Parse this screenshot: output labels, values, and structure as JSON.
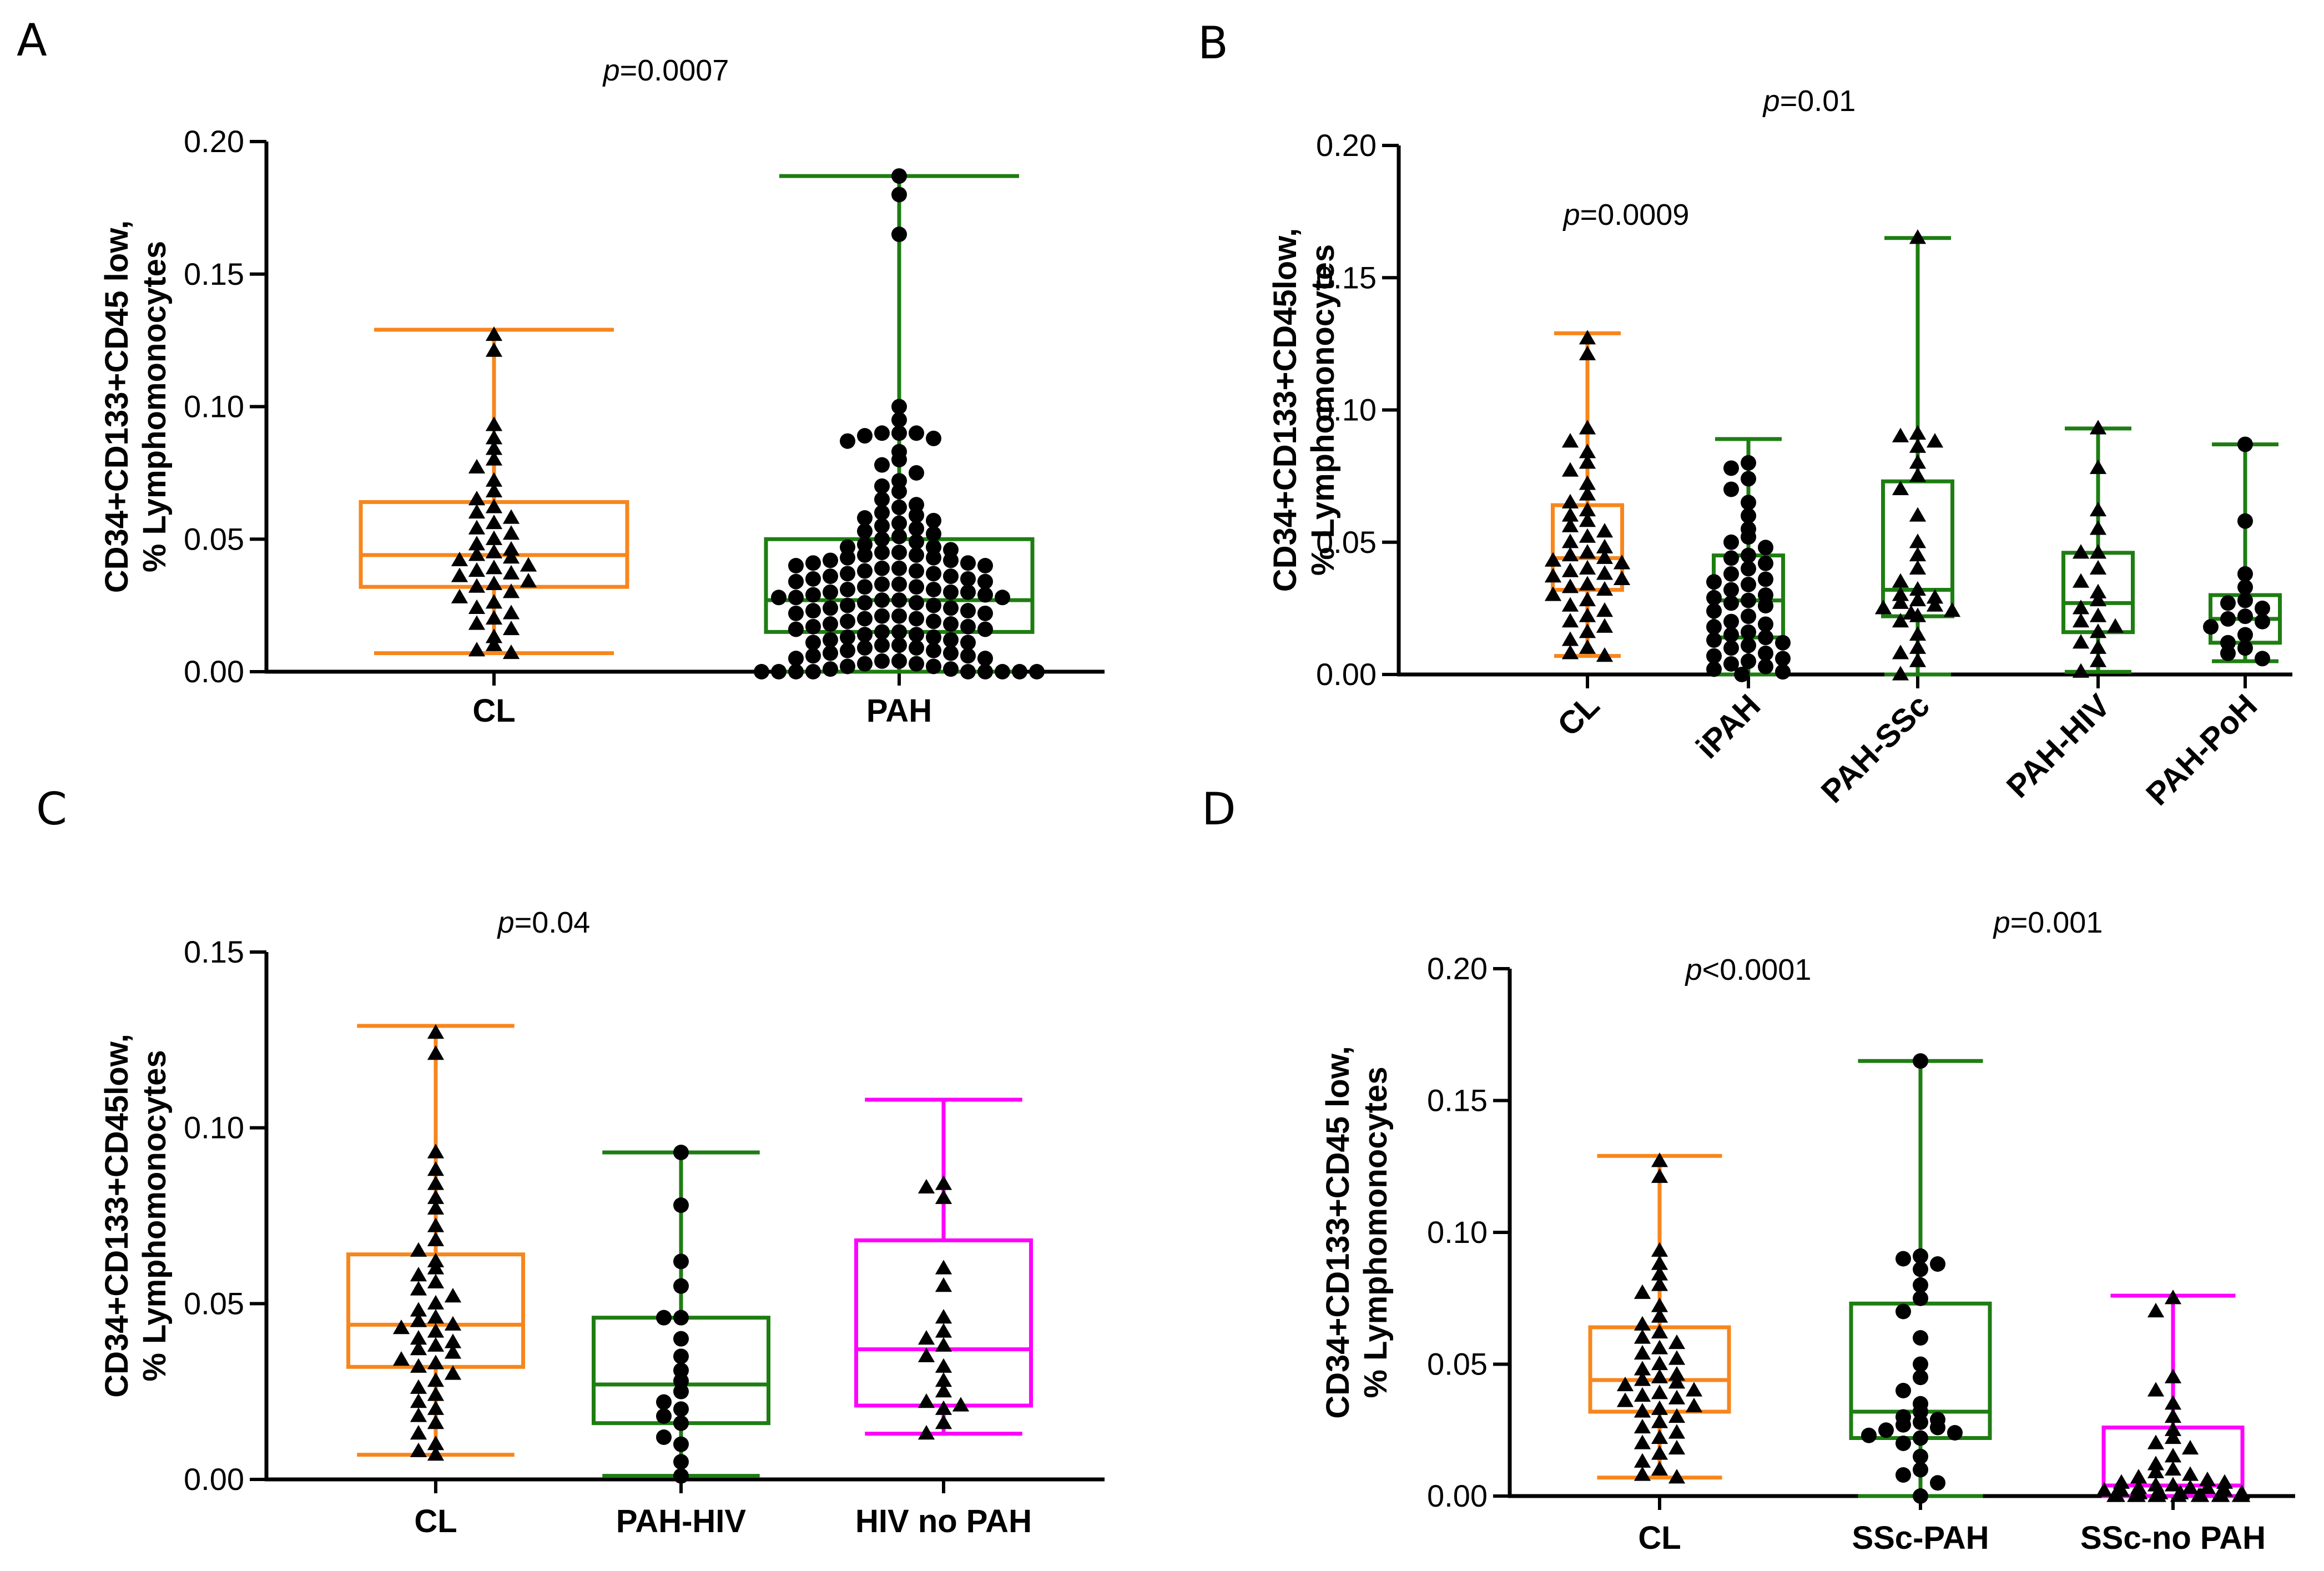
{
  "chart_data": [
    {
      "panel": "A",
      "type": "box",
      "title": "",
      "ylabel_lines": [
        "CD34+CD133+CD45 low,",
        "% Lymphomonocytes"
      ],
      "ylim": [
        0,
        0.2
      ],
      "yticks": [
        "0.00",
        "0.05",
        "0.10",
        "0.15",
        "0.20"
      ],
      "ytick_values": [
        0,
        0.05,
        0.1,
        0.15,
        0.2
      ],
      "categories": [
        "CL",
        "PAH"
      ],
      "pvalues": [
        {
          "prefix": "p",
          "text": "=0.0007"
        }
      ],
      "series": [
        {
          "name": "CL",
          "color": "#f7861c",
          "marker": "triangle",
          "min": 0.007,
          "q1": 0.032,
          "median": 0.044,
          "q3": 0.064,
          "max": 0.129,
          "points": [
            0.127,
            0.121,
            0.093,
            0.088,
            0.084,
            0.08,
            0.077,
            0.072,
            0.068,
            0.065,
            0.062,
            0.06,
            0.058,
            0.056,
            0.054,
            0.052,
            0.05,
            0.048,
            0.046,
            0.045,
            0.044,
            0.043,
            0.042,
            0.04,
            0.039,
            0.038,
            0.037,
            0.036,
            0.034,
            0.033,
            0.032,
            0.03,
            0.028,
            0.026,
            0.024,
            0.022,
            0.02,
            0.018,
            0.016,
            0.013,
            0.01,
            0.008,
            0.007
          ]
        },
        {
          "name": "PAH",
          "color": "#1e7d12",
          "marker": "circle",
          "min": 0.0,
          "q1": 0.015,
          "median": 0.027,
          "q3": 0.05,
          "max": 0.187,
          "points": [
            0.187,
            0.18,
            0.165,
            0.1,
            0.095,
            0.09,
            0.09,
            0.09,
            0.089,
            0.088,
            0.087,
            0.083,
            0.08,
            0.078,
            0.075,
            0.072,
            0.07,
            0.068,
            0.065,
            0.063,
            0.062,
            0.06,
            0.059,
            0.058,
            0.057,
            0.056,
            0.055,
            0.054,
            0.053,
            0.052,
            0.051,
            0.05,
            0.049,
            0.048,
            0.047,
            0.047,
            0.046,
            0.045,
            0.045,
            0.044,
            0.044,
            0.043,
            0.043,
            0.042,
            0.042,
            0.041,
            0.041,
            0.04,
            0.04,
            0.039,
            0.039,
            0.038,
            0.038,
            0.037,
            0.037,
            0.036,
            0.036,
            0.035,
            0.035,
            0.034,
            0.034,
            0.033,
            0.033,
            0.032,
            0.032,
            0.031,
            0.031,
            0.03,
            0.03,
            0.03,
            0.029,
            0.029,
            0.028,
            0.028,
            0.028,
            0.027,
            0.027,
            0.026,
            0.026,
            0.025,
            0.025,
            0.024,
            0.024,
            0.023,
            0.023,
            0.022,
            0.022,
            0.021,
            0.021,
            0.02,
            0.02,
            0.019,
            0.019,
            0.018,
            0.018,
            0.017,
            0.017,
            0.016,
            0.016,
            0.015,
            0.015,
            0.014,
            0.014,
            0.013,
            0.013,
            0.012,
            0.012,
            0.011,
            0.011,
            0.01,
            0.01,
            0.009,
            0.009,
            0.008,
            0.008,
            0.007,
            0.007,
            0.006,
            0.006,
            0.005,
            0.005,
            0.004,
            0.004,
            0.003,
            0.003,
            0.002,
            0.002,
            0.001,
            0.001,
            0.0,
            0.0,
            0.0,
            0.0,
            0.0,
            0.0,
            0.0,
            0.0,
            0.0
          ]
        }
      ]
    },
    {
      "panel": "B",
      "type": "box",
      "title": "",
      "ylabel_lines": [
        "CD34+CD133+CD45low,",
        "% Lymphomonocytes"
      ],
      "ylim": [
        0,
        0.2
      ],
      "yticks": [
        "0.00",
        "0.05",
        "0.10",
        "0.15",
        "0.20"
      ],
      "ytick_values": [
        0,
        0.05,
        0.1,
        0.15,
        0.2
      ],
      "categories": [
        "CL",
        "iPAH",
        "PAH-SSc",
        "PAH-HIV",
        "PAH-PoH"
      ],
      "pvalues": [
        {
          "prefix": "p",
          "text": "=0.01"
        },
        {
          "prefix": "p",
          "text": "=0.0009"
        }
      ],
      "series": [
        {
          "name": "CL",
          "color": "#f7861c",
          "marker": "triangle",
          "min": 0.007,
          "q1": 0.032,
          "median": 0.044,
          "q3": 0.064,
          "max": 0.129,
          "points": [
            0.127,
            0.121,
            0.093,
            0.088,
            0.084,
            0.08,
            0.077,
            0.072,
            0.068,
            0.065,
            0.062,
            0.06,
            0.058,
            0.056,
            0.054,
            0.052,
            0.05,
            0.048,
            0.046,
            0.045,
            0.044,
            0.043,
            0.042,
            0.04,
            0.039,
            0.038,
            0.037,
            0.036,
            0.034,
            0.033,
            0.032,
            0.03,
            0.028,
            0.026,
            0.024,
            0.022,
            0.02,
            0.018,
            0.016,
            0.013,
            0.01,
            0.008,
            0.007
          ]
        },
        {
          "name": "iPAH",
          "color": "#1e7d12",
          "marker": "circle",
          "min": 0.0,
          "q1": 0.014,
          "median": 0.028,
          "q3": 0.045,
          "max": 0.089,
          "points": [
            0.08,
            0.078,
            0.074,
            0.07,
            0.065,
            0.06,
            0.055,
            0.052,
            0.05,
            0.048,
            0.045,
            0.044,
            0.042,
            0.04,
            0.038,
            0.036,
            0.035,
            0.034,
            0.032,
            0.03,
            0.029,
            0.028,
            0.027,
            0.026,
            0.024,
            0.022,
            0.02,
            0.019,
            0.018,
            0.016,
            0.015,
            0.014,
            0.013,
            0.012,
            0.011,
            0.01,
            0.008,
            0.007,
            0.006,
            0.005,
            0.004,
            0.003,
            0.002,
            0.001,
            0.0
          ]
        },
        {
          "name": "PAH-SSc",
          "color": "#1e7d12",
          "marker": "triangle",
          "min": 0.0,
          "q1": 0.022,
          "median": 0.032,
          "q3": 0.073,
          "max": 0.165,
          "points": [
            0.165,
            0.091,
            0.09,
            0.088,
            0.086,
            0.08,
            0.075,
            0.07,
            0.06,
            0.05,
            0.045,
            0.04,
            0.035,
            0.032,
            0.03,
            0.029,
            0.028,
            0.027,
            0.026,
            0.025,
            0.024,
            0.023,
            0.022,
            0.02,
            0.015,
            0.01,
            0.008,
            0.005,
            0.0
          ]
        },
        {
          "name": "PAH-HIV",
          "color": "#1e7d12",
          "marker": "triangle",
          "min": 0.001,
          "q1": 0.016,
          "median": 0.027,
          "q3": 0.046,
          "max": 0.093,
          "points": [
            0.093,
            0.078,
            0.062,
            0.055,
            0.046,
            0.046,
            0.04,
            0.035,
            0.031,
            0.028,
            0.025,
            0.022,
            0.02,
            0.018,
            0.016,
            0.012,
            0.01,
            0.005,
            0.001
          ]
        },
        {
          "name": "PAH-PoH",
          "color": "#1e7d12",
          "marker": "circle",
          "min": 0.005,
          "q1": 0.012,
          "median": 0.021,
          "q3": 0.03,
          "max": 0.087,
          "points": [
            0.087,
            0.058,
            0.038,
            0.033,
            0.028,
            0.027,
            0.025,
            0.022,
            0.021,
            0.02,
            0.018,
            0.015,
            0.012,
            0.01,
            0.008,
            0.006
          ]
        }
      ]
    },
    {
      "panel": "C",
      "type": "box",
      "title": "",
      "ylabel_lines": [
        "CD34+CD133+CD45low,",
        "% Lymphomonocytes"
      ],
      "ylim": [
        0,
        0.15
      ],
      "yticks": [
        "0.00",
        "0.05",
        "0.10",
        "0.15"
      ],
      "ytick_values": [
        0,
        0.05,
        0.1,
        0.15
      ],
      "categories": [
        "CL",
        "PAH-HIV",
        "HIV no PAH"
      ],
      "pvalues": [
        {
          "prefix": "p",
          "text": "=0.04"
        }
      ],
      "series": [
        {
          "name": "CL",
          "color": "#f7861c",
          "marker": "triangle",
          "min": 0.007,
          "q1": 0.032,
          "median": 0.044,
          "q3": 0.064,
          "max": 0.129,
          "points": [
            0.127,
            0.121,
            0.093,
            0.088,
            0.084,
            0.08,
            0.077,
            0.072,
            0.068,
            0.065,
            0.062,
            0.06,
            0.058,
            0.056,
            0.054,
            0.052,
            0.05,
            0.048,
            0.046,
            0.045,
            0.044,
            0.043,
            0.042,
            0.04,
            0.039,
            0.038,
            0.037,
            0.036,
            0.034,
            0.033,
            0.032,
            0.03,
            0.028,
            0.026,
            0.024,
            0.022,
            0.02,
            0.018,
            0.016,
            0.013,
            0.01,
            0.008,
            0.007
          ]
        },
        {
          "name": "PAH-HIV",
          "color": "#1e7d12",
          "marker": "circle",
          "min": 0.001,
          "q1": 0.016,
          "median": 0.027,
          "q3": 0.046,
          "max": 0.093,
          "points": [
            0.093,
            0.078,
            0.062,
            0.055,
            0.046,
            0.046,
            0.04,
            0.035,
            0.031,
            0.028,
            0.025,
            0.022,
            0.02,
            0.018,
            0.016,
            0.012,
            0.01,
            0.005,
            0.001
          ]
        },
        {
          "name": "HIV no PAH",
          "color": "#ff00ff",
          "marker": "triangle",
          "min": 0.013,
          "q1": 0.021,
          "median": 0.037,
          "q3": 0.068,
          "max": 0.108,
          "points": [
            0.084,
            0.083,
            0.08,
            0.06,
            0.055,
            0.046,
            0.042,
            0.04,
            0.038,
            0.035,
            0.032,
            0.028,
            0.025,
            0.022,
            0.021,
            0.02,
            0.016,
            0.013
          ]
        }
      ]
    },
    {
      "panel": "D",
      "type": "box",
      "title": "",
      "ylabel_lines": [
        "CD34+CD133+CD45 low,",
        "% Lymphomonocytes"
      ],
      "ylim": [
        0,
        0.2
      ],
      "yticks": [
        "0.00",
        "0.05",
        "0.10",
        "0.15",
        "0.20"
      ],
      "ytick_values": [
        0,
        0.05,
        0.1,
        0.15,
        0.2
      ],
      "categories": [
        "CL",
        "SSc-PAH",
        "SSc-no PAH"
      ],
      "pvalues": [
        {
          "prefix": "p",
          "text": "=0.001"
        },
        {
          "prefix": "p",
          "text": "<0.0001"
        }
      ],
      "series": [
        {
          "name": "CL",
          "color": "#f7861c",
          "marker": "triangle",
          "min": 0.007,
          "q1": 0.032,
          "median": 0.044,
          "q3": 0.064,
          "max": 0.129,
          "points": [
            0.127,
            0.121,
            0.093,
            0.088,
            0.084,
            0.08,
            0.077,
            0.072,
            0.068,
            0.065,
            0.062,
            0.06,
            0.058,
            0.056,
            0.054,
            0.052,
            0.05,
            0.048,
            0.046,
            0.045,
            0.044,
            0.043,
            0.042,
            0.04,
            0.039,
            0.038,
            0.037,
            0.036,
            0.034,
            0.033,
            0.032,
            0.03,
            0.028,
            0.026,
            0.024,
            0.022,
            0.02,
            0.018,
            0.016,
            0.013,
            0.01,
            0.008,
            0.007
          ]
        },
        {
          "name": "SSc-PAH",
          "color": "#1e7d12",
          "marker": "circle",
          "min": 0.0,
          "q1": 0.022,
          "median": 0.032,
          "q3": 0.073,
          "max": 0.165,
          "points": [
            0.165,
            0.091,
            0.09,
            0.088,
            0.086,
            0.08,
            0.075,
            0.07,
            0.06,
            0.05,
            0.045,
            0.04,
            0.035,
            0.032,
            0.03,
            0.029,
            0.028,
            0.027,
            0.026,
            0.025,
            0.024,
            0.023,
            0.022,
            0.02,
            0.015,
            0.01,
            0.008,
            0.005,
            0.0
          ]
        },
        {
          "name": "SSc-no PAH",
          "color": "#ff00ff",
          "marker": "triangle",
          "min": 0.0,
          "q1": 0.0,
          "median": 0.004,
          "q3": 0.026,
          "max": 0.076,
          "points": [
            0.075,
            0.07,
            0.045,
            0.04,
            0.035,
            0.03,
            0.025,
            0.022,
            0.02,
            0.018,
            0.015,
            0.012,
            0.01,
            0.009,
            0.008,
            0.007,
            0.006,
            0.005,
            0.005,
            0.004,
            0.004,
            0.003,
            0.003,
            0.003,
            0.002,
            0.002,
            0.002,
            0.001,
            0.001,
            0.001,
            0.001,
            0.0,
            0.0,
            0.0,
            0.0,
            0.0,
            0.0,
            0.0,
            0.0,
            0.0,
            0.0,
            0.0,
            0.0,
            0.0
          ]
        }
      ]
    }
  ]
}
